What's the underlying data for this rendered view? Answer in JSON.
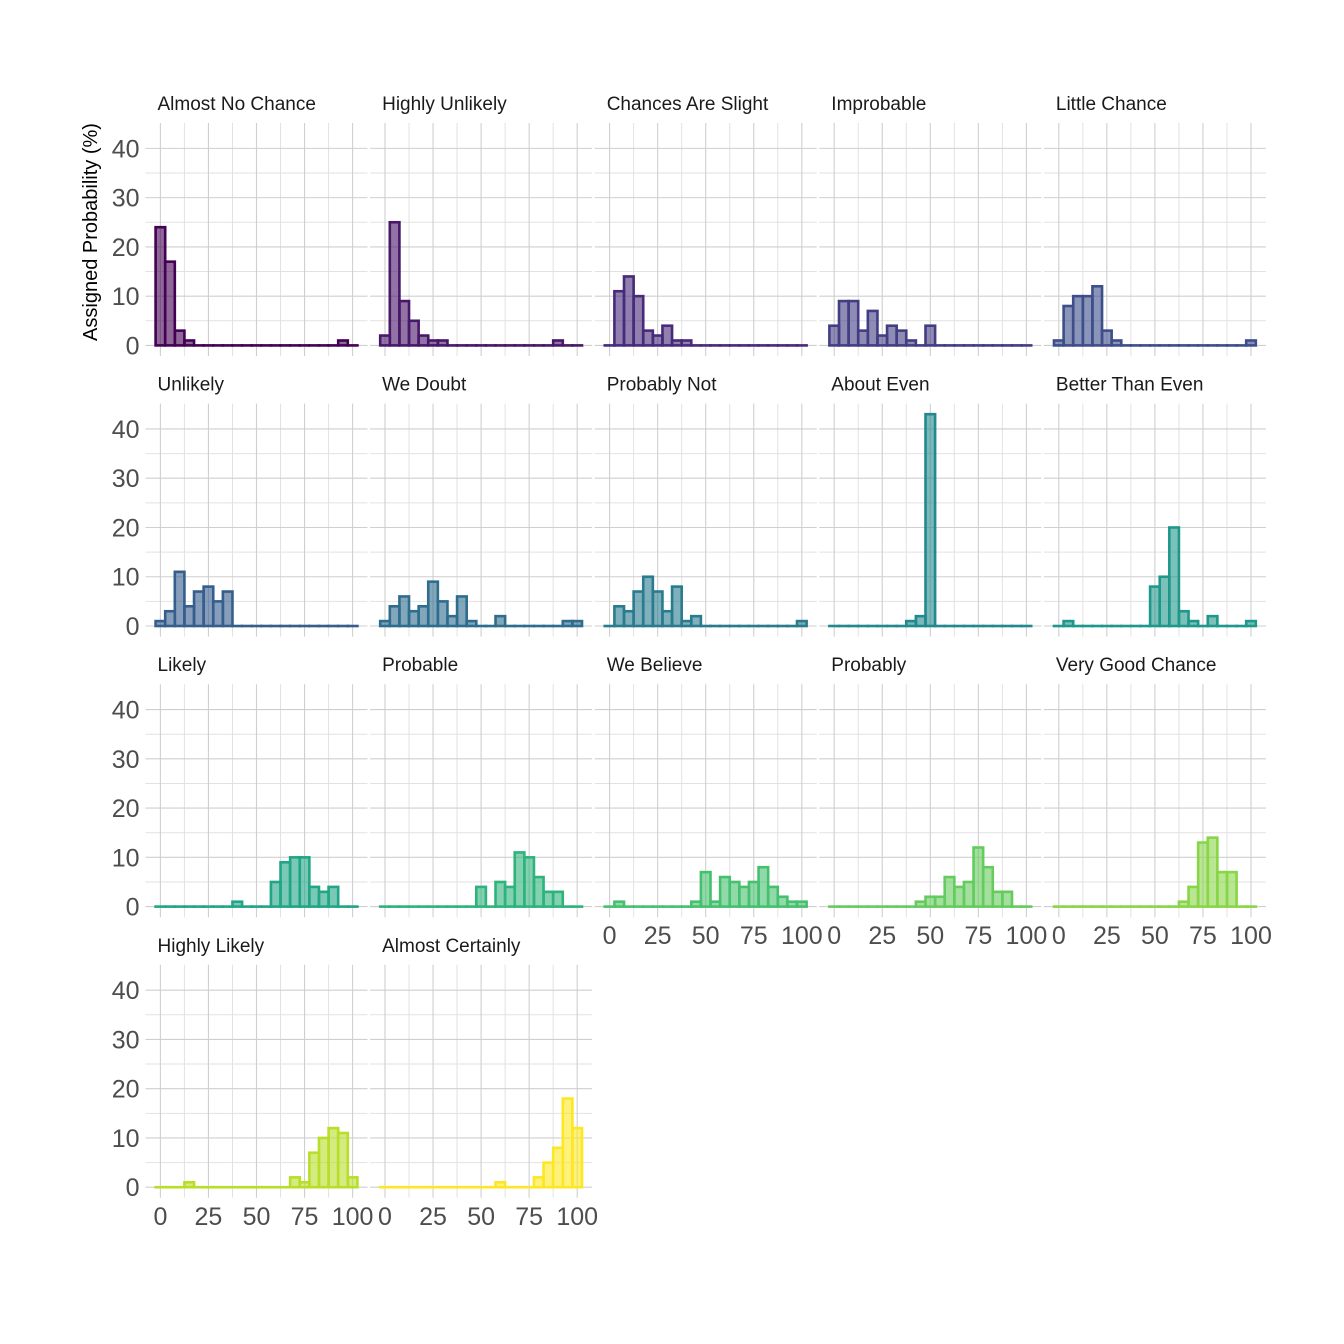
{
  "chart_data": {
    "type": "bar",
    "subtype": "faceted histogram",
    "ylabel": "Assigned Probability (%)",
    "xlabel": "",
    "bin_centers": [
      0,
      5,
      10,
      15,
      20,
      25,
      30,
      35,
      40,
      45,
      50,
      55,
      60,
      65,
      70,
      75,
      80,
      85,
      90,
      95,
      100
    ],
    "xlim": [
      0,
      100
    ],
    "ylim": [
      0,
      45
    ],
    "x_ticks": [
      "0",
      "25",
      "50",
      "75",
      "100"
    ],
    "y_ticks": [
      "0",
      "10",
      "20",
      "30",
      "40"
    ],
    "grid": true,
    "colormap": "viridis",
    "panels": [
      {
        "name": "Almost No Chance",
        "color": "#440154",
        "values": [
          24,
          17,
          3,
          1,
          0,
          0,
          0,
          0,
          0,
          0,
          0,
          0,
          0,
          0,
          0,
          0,
          0,
          0,
          0,
          1,
          0
        ]
      },
      {
        "name": "Highly Unlikely",
        "color": "#481769",
        "values": [
          2,
          25,
          9,
          5,
          2,
          1,
          1,
          0,
          0,
          0,
          0,
          0,
          0,
          0,
          0,
          0,
          0,
          0,
          1,
          0,
          0
        ]
      },
      {
        "name": "Chances Are Slight",
        "color": "#472a7a",
        "values": [
          0,
          11,
          14,
          10,
          3,
          2,
          4,
          1,
          1,
          0,
          0,
          0,
          0,
          0,
          0,
          0,
          0,
          0,
          0,
          0,
          0
        ]
      },
      {
        "name": "Improbable",
        "color": "#433d84",
        "values": [
          4,
          9,
          9,
          3,
          7,
          2,
          4,
          3,
          1,
          0,
          4,
          0,
          0,
          0,
          0,
          0,
          0,
          0,
          0,
          0,
          0
        ]
      },
      {
        "name": "Little Chance",
        "color": "#3d4e8a",
        "values": [
          1,
          8,
          10,
          10,
          12,
          3,
          1,
          0,
          0,
          0,
          0,
          0,
          0,
          0,
          0,
          0,
          0,
          0,
          0,
          0,
          1
        ]
      },
      {
        "name": "Unlikely",
        "color": "#355e8d",
        "values": [
          1,
          3,
          11,
          4,
          7,
          8,
          5,
          7,
          0,
          0,
          0,
          0,
          0,
          0,
          0,
          0,
          0,
          0,
          0,
          0,
          0
        ]
      },
      {
        "name": "We Doubt",
        "color": "#2e6d8e",
        "values": [
          1,
          4,
          6,
          3,
          4,
          9,
          5,
          2,
          6,
          1,
          0,
          0,
          2,
          0,
          0,
          0,
          0,
          0,
          0,
          1,
          1
        ]
      },
      {
        "name": "Probably Not",
        "color": "#297b8e",
        "values": [
          0,
          4,
          3,
          7,
          10,
          7,
          3,
          8,
          1,
          2,
          0,
          0,
          0,
          0,
          0,
          0,
          0,
          0,
          0,
          0,
          1
        ]
      },
      {
        "name": "About Even",
        "color": "#23898e",
        "values": [
          0,
          0,
          0,
          0,
          0,
          0,
          0,
          0,
          1,
          2,
          43,
          0,
          0,
          0,
          0,
          0,
          0,
          0,
          0,
          0,
          0
        ]
      },
      {
        "name": "Better Than Even",
        "color": "#1f978b",
        "values": [
          0,
          1,
          0,
          0,
          0,
          0,
          0,
          0,
          0,
          0,
          8,
          10,
          20,
          3,
          1,
          0,
          2,
          0,
          0,
          0,
          1
        ]
      },
      {
        "name": "Likely",
        "color": "#21a585",
        "values": [
          0,
          0,
          0,
          0,
          0,
          0,
          0,
          0,
          1,
          0,
          0,
          0,
          5,
          9,
          10,
          10,
          4,
          3,
          4,
          0,
          0
        ]
      },
      {
        "name": "Probable",
        "color": "#2eb37c",
        "values": [
          0,
          0,
          0,
          0,
          0,
          0,
          0,
          0,
          0,
          0,
          4,
          0,
          5,
          4,
          11,
          10,
          6,
          3,
          3,
          0,
          0
        ]
      },
      {
        "name": "We Believe",
        "color": "#46c06f",
        "values": [
          0,
          1,
          0,
          0,
          0,
          0,
          0,
          0,
          0,
          1,
          7,
          1,
          6,
          5,
          4,
          5,
          8,
          4,
          2,
          1,
          1
        ]
      },
      {
        "name": "Probably",
        "color": "#65cb5e",
        "values": [
          0,
          0,
          0,
          0,
          0,
          0,
          0,
          0,
          0,
          1,
          2,
          2,
          6,
          4,
          5,
          12,
          8,
          3,
          3,
          0,
          0
        ]
      },
      {
        "name": "Very Good Chance",
        "color": "#89d548",
        "values": [
          0,
          0,
          0,
          0,
          0,
          0,
          0,
          0,
          0,
          0,
          0,
          0,
          0,
          1,
          4,
          13,
          14,
          7,
          7,
          0,
          0
        ]
      },
      {
        "name": "Highly Likely",
        "color": "#b8de29",
        "values": [
          0,
          0,
          0,
          1,
          0,
          0,
          0,
          0,
          0,
          0,
          0,
          0,
          0,
          0,
          2,
          1,
          7,
          10,
          12,
          11,
          2
        ]
      },
      {
        "name": "Almost Certainly",
        "color": "#fde725",
        "values": [
          0,
          0,
          0,
          0,
          0,
          0,
          0,
          0,
          0,
          0,
          0,
          0,
          1,
          0,
          0,
          0,
          2,
          5,
          8,
          18,
          12
        ]
      }
    ]
  }
}
